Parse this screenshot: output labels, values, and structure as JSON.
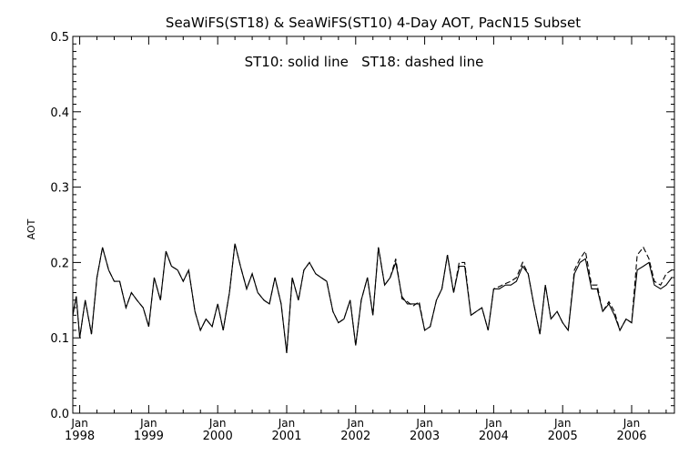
{
  "chart_data": {
    "type": "line",
    "title": "SeaWiFS(ST18) & SeaWiFS(ST10) 4-Day AOT, PacN15 Subset",
    "annotation": "ST10: solid line   ST18: dashed line",
    "ylabel": "AOT",
    "xlabel": "",
    "ylim": [
      0.0,
      0.5
    ],
    "xlim": [
      1997.9,
      2006.62
    ],
    "y_ticks": [
      "0.0",
      "0.1",
      "0.2",
      "0.3",
      "0.4",
      "0.5"
    ],
    "x_ticks": [
      {
        "month": "Jan",
        "year": "1998",
        "x": 1998
      },
      {
        "month": "Jan",
        "year": "1999",
        "x": 1999
      },
      {
        "month": "Jan",
        "year": "2000",
        "x": 2000
      },
      {
        "month": "Jan",
        "year": "2001",
        "x": 2001
      },
      {
        "month": "Jan",
        "year": "2002",
        "x": 2002
      },
      {
        "month": "Jan",
        "year": "2003",
        "x": 2003
      },
      {
        "month": "Jan",
        "year": "2004",
        "x": 2004
      },
      {
        "month": "Jan",
        "year": "2005",
        "x": 2005
      },
      {
        "month": "Jan",
        "year": "2006",
        "x": 2006
      }
    ],
    "grid": false,
    "series": [
      {
        "name": "ST10",
        "style": "solid",
        "x": [
          1997.9,
          1997.95,
          1998.0,
          1998.08,
          1998.17,
          1998.25,
          1998.33,
          1998.42,
          1998.5,
          1998.58,
          1998.67,
          1998.75,
          1998.83,
          1998.92,
          1999.0,
          1999.08,
          1999.17,
          1999.25,
          1999.33,
          1999.42,
          1999.5,
          1999.58,
          1999.67,
          1999.75,
          1999.83,
          1999.92,
          2000.0,
          2000.08,
          2000.17,
          2000.25,
          2000.33,
          2000.42,
          2000.5,
          2000.58,
          2000.67,
          2000.75,
          2000.83,
          2000.92,
          2001.0,
          2001.08,
          2001.17,
          2001.25,
          2001.33,
          2001.42,
          2001.5,
          2001.58,
          2001.67,
          2001.75,
          2001.83,
          2001.92,
          2002.0,
          2002.08,
          2002.17,
          2002.25,
          2002.33,
          2002.42,
          2002.5,
          2002.58,
          2002.67,
          2002.75,
          2002.83,
          2002.92,
          2003.0,
          2003.08,
          2003.17,
          2003.25,
          2003.33,
          2003.42,
          2003.5,
          2003.58,
          2003.67,
          2003.75,
          2003.83,
          2003.92,
          2004.0,
          2004.08,
          2004.17,
          2004.25,
          2004.33,
          2004.42,
          2004.5,
          2004.58,
          2004.67,
          2004.75,
          2004.83,
          2004.92,
          2005.0,
          2005.08,
          2005.17,
          2005.25,
          2005.33,
          2005.42,
          2005.5,
          2005.58,
          2005.67,
          2005.75,
          2005.83,
          2005.92,
          2006.0,
          2006.08,
          2006.17,
          2006.25,
          2006.33,
          2006.42,
          2006.5,
          2006.58
        ],
        "values": [
          0.13,
          0.155,
          0.1,
          0.15,
          0.105,
          0.18,
          0.22,
          0.19,
          0.175,
          0.175,
          0.14,
          0.16,
          0.15,
          0.14,
          0.115,
          0.18,
          0.15,
          0.215,
          0.195,
          0.19,
          0.175,
          0.19,
          0.135,
          0.11,
          0.125,
          0.115,
          0.145,
          0.11,
          0.16,
          0.225,
          0.195,
          0.165,
          0.185,
          0.16,
          0.15,
          0.145,
          0.18,
          0.145,
          0.08,
          0.18,
          0.15,
          0.19,
          0.2,
          0.185,
          0.18,
          0.175,
          0.135,
          0.12,
          0.125,
          0.15,
          0.09,
          0.15,
          0.18,
          0.13,
          0.22,
          0.17,
          0.18,
          0.2,
          0.155,
          0.145,
          0.145,
          0.145,
          0.11,
          0.115,
          0.15,
          0.165,
          0.21,
          0.16,
          0.195,
          0.195,
          0.13,
          0.135,
          0.14,
          0.11,
          0.165,
          0.165,
          0.17,
          0.17,
          0.175,
          0.195,
          0.185,
          0.145,
          0.105,
          0.17,
          0.125,
          0.135,
          0.12,
          0.11,
          0.185,
          0.2,
          0.205,
          0.165,
          0.165,
          0.135,
          0.145,
          0.13,
          0.11,
          0.125,
          0.12,
          0.19,
          0.195,
          0.2,
          0.17,
          0.165,
          0.17,
          0.18
        ]
      },
      {
        "name": "ST18",
        "style": "dashed",
        "x": [
          1997.9,
          1997.95,
          1998.0,
          1998.08,
          1998.17,
          1998.25,
          1998.33,
          1998.42,
          1998.5,
          1998.58,
          1998.67,
          1998.75,
          1998.83,
          1998.92,
          1999.0,
          1999.08,
          1999.17,
          1999.25,
          1999.33,
          1999.42,
          1999.5,
          1999.58,
          1999.67,
          1999.75,
          1999.83,
          1999.92,
          2000.0,
          2000.08,
          2000.17,
          2000.25,
          2000.33,
          2000.42,
          2000.5,
          2000.58,
          2000.67,
          2000.75,
          2000.83,
          2000.92,
          2001.0,
          2001.08,
          2001.17,
          2001.25,
          2001.33,
          2001.42,
          2001.5,
          2001.58,
          2001.67,
          2001.75,
          2001.83,
          2001.92,
          2002.0,
          2002.08,
          2002.17,
          2002.25,
          2002.33,
          2002.42,
          2002.5,
          2002.58,
          2002.67,
          2002.75,
          2002.83,
          2002.92,
          2003.0,
          2003.08,
          2003.17,
          2003.25,
          2003.33,
          2003.42,
          2003.5,
          2003.58,
          2003.67,
          2003.75,
          2003.83,
          2003.92,
          2004.0,
          2004.08,
          2004.17,
          2004.25,
          2004.33,
          2004.42,
          2004.5,
          2004.58,
          2004.67,
          2004.75,
          2004.83,
          2004.92,
          2005.0,
          2005.08,
          2005.17,
          2005.25,
          2005.33,
          2005.42,
          2005.5,
          2005.58,
          2005.67,
          2005.75,
          2005.83,
          2005.92,
          2006.0,
          2006.08,
          2006.17,
          2006.25,
          2006.33,
          2006.42,
          2006.5,
          2006.58
        ],
        "values": [
          0.13,
          0.155,
          0.1,
          0.15,
          0.105,
          0.18,
          0.22,
          0.19,
          0.175,
          0.175,
          0.14,
          0.16,
          0.15,
          0.14,
          0.115,
          0.18,
          0.15,
          0.215,
          0.195,
          0.19,
          0.175,
          0.19,
          0.135,
          0.11,
          0.125,
          0.115,
          0.145,
          0.11,
          0.16,
          0.225,
          0.195,
          0.165,
          0.185,
          0.16,
          0.15,
          0.145,
          0.18,
          0.145,
          0.08,
          0.18,
          0.15,
          0.19,
          0.2,
          0.185,
          0.18,
          0.175,
          0.135,
          0.12,
          0.125,
          0.15,
          0.09,
          0.15,
          0.18,
          0.13,
          0.22,
          0.17,
          0.18,
          0.205,
          0.152,
          0.148,
          0.142,
          0.148,
          0.11,
          0.115,
          0.15,
          0.165,
          0.21,
          0.16,
          0.2,
          0.2,
          0.13,
          0.135,
          0.14,
          0.11,
          0.165,
          0.168,
          0.172,
          0.175,
          0.18,
          0.2,
          0.185,
          0.145,
          0.105,
          0.17,
          0.125,
          0.135,
          0.12,
          0.11,
          0.19,
          0.205,
          0.215,
          0.17,
          0.17,
          0.135,
          0.148,
          0.135,
          0.11,
          0.125,
          0.12,
          0.21,
          0.22,
          0.205,
          0.175,
          0.17,
          0.185,
          0.19
        ]
      }
    ]
  }
}
